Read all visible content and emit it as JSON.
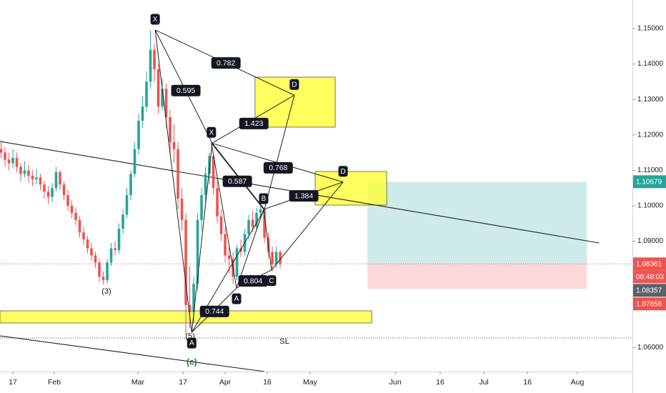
{
  "chart_data": {
    "type": "candlestick",
    "up_color": "#26a69a",
    "down_color": "#ef5350",
    "x": [
      -3,
      -2,
      -1,
      0,
      1,
      2,
      3,
      4,
      5,
      6,
      7,
      8,
      9,
      10,
      11,
      12,
      13,
      14,
      15,
      16,
      17,
      18,
      19,
      20,
      21,
      22,
      23,
      24,
      25,
      26,
      27,
      28,
      29,
      30,
      31,
      32,
      33,
      34,
      35,
      36,
      37,
      38,
      39,
      40,
      41,
      42,
      43,
      44,
      45,
      46,
      47,
      48,
      49,
      50,
      51,
      52,
      53,
      54,
      55,
      56,
      57,
      58,
      59,
      60,
      61,
      62,
      63,
      64,
      65,
      66,
      67,
      68
    ],
    "open": [
      1.116,
      1.115,
      1.113,
      1.112,
      1.1135,
      1.111,
      1.109,
      1.11,
      1.1085,
      1.1075,
      1.108,
      1.106,
      1.104,
      1.1025,
      1.105,
      1.1095,
      1.106,
      1.103,
      1.1,
      1.098,
      1.096,
      1.0925,
      1.0905,
      1.088,
      1.086,
      1.084,
      1.08,
      1.079,
      1.084,
      1.088,
      1.0875,
      1.0935,
      1.0975,
      1.103,
      1.109,
      1.116,
      1.124,
      1.128,
      1.135,
      1.144,
      1.1385,
      1.128,
      1.133,
      1.125,
      1.118,
      1.116,
      1.102,
      1.096,
      1.072,
      1.07,
      1.078,
      1.096,
      1.103,
      1.109,
      1.114,
      1.105,
      1.097,
      1.092,
      1.086,
      1.085,
      1.08,
      1.088,
      1.087,
      1.092,
      1.096,
      1.094,
      1.098,
      1.099,
      1.091,
      1.087,
      1.0835,
      1.087
    ],
    "high": [
      1.1185,
      1.1165,
      1.115,
      1.116,
      1.115,
      1.112,
      1.1125,
      1.1115,
      1.11,
      1.1105,
      1.109,
      1.107,
      1.1055,
      1.1065,
      1.111,
      1.11,
      1.107,
      1.1045,
      1.1015,
      1.0995,
      1.097,
      1.094,
      1.0915,
      1.0895,
      1.087,
      1.085,
      1.0815,
      1.085,
      1.0895,
      1.09,
      1.095,
      1.099,
      1.105,
      1.11,
      1.118,
      1.126,
      1.131,
      1.138,
      1.1495,
      1.1455,
      1.14,
      1.136,
      1.1345,
      1.127,
      1.123,
      1.118,
      1.105,
      1.098,
      1.083,
      1.08,
      1.098,
      1.105,
      1.111,
      1.115,
      1.1145,
      1.107,
      1.099,
      1.094,
      1.0885,
      1.087,
      1.089,
      1.0905,
      1.0935,
      1.0975,
      1.0985,
      1.0995,
      1.101,
      1.0995,
      1.0925,
      1.0885,
      1.0885,
      1.0875
    ],
    "low": [
      1.1135,
      1.111,
      1.11,
      1.1105,
      1.1095,
      1.107,
      1.108,
      1.1065,
      1.1055,
      1.106,
      1.1045,
      1.102,
      1.1005,
      1.101,
      1.104,
      1.1045,
      1.1015,
      1.0985,
      1.0965,
      1.0945,
      1.091,
      1.089,
      1.0865,
      1.0845,
      1.0825,
      1.0785,
      1.0778,
      1.078,
      1.083,
      1.086,
      1.0865,
      1.092,
      1.0965,
      1.1015,
      1.108,
      1.1145,
      1.122,
      1.1265,
      1.133,
      1.135,
      1.126,
      1.127,
      1.122,
      1.115,
      1.112,
      1.099,
      1.093,
      1.0636,
      1.0655,
      1.067,
      1.076,
      1.093,
      1.101,
      1.106,
      1.103,
      1.095,
      1.09,
      1.084,
      1.081,
      1.078,
      1.079,
      1.0855,
      1.086,
      1.0905,
      1.0925,
      1.093,
      1.0965,
      1.0895,
      1.085,
      1.0815,
      1.0825,
      1.0825
    ],
    "close": [
      1.115,
      1.113,
      1.112,
      1.1135,
      1.111,
      1.109,
      1.11,
      1.1085,
      1.1075,
      1.108,
      1.106,
      1.104,
      1.1025,
      1.105,
      1.1095,
      1.106,
      1.103,
      1.1,
      1.098,
      1.096,
      1.0925,
      1.0905,
      1.088,
      1.086,
      1.084,
      1.08,
      1.079,
      1.084,
      1.088,
      1.0875,
      1.0935,
      1.0975,
      1.103,
      1.109,
      1.116,
      1.124,
      1.128,
      1.135,
      1.144,
      1.1385,
      1.128,
      1.133,
      1.125,
      1.118,
      1.116,
      1.102,
      1.096,
      1.072,
      1.07,
      1.078,
      1.096,
      1.103,
      1.109,
      1.114,
      1.105,
      1.097,
      1.092,
      1.086,
      1.085,
      1.08,
      1.088,
      1.087,
      1.092,
      1.096,
      1.094,
      1.098,
      1.099,
      1.091,
      1.087,
      1.0835,
      1.087,
      1.0836
    ],
    "xlim": [
      -3.27,
      157.6
    ],
    "xticks": [
      {
        "value": 0,
        "label": "17"
      },
      {
        "value": 10.55,
        "label": "Feb"
      },
      {
        "value": 31.8,
        "label": "Mar"
      },
      {
        "value": 43.3,
        "label": "17"
      },
      {
        "value": 54,
        "label": "Apr"
      },
      {
        "value": 64.7,
        "label": "16"
      },
      {
        "value": 75.6,
        "label": "May"
      },
      {
        "value": 97.3,
        "label": "Jun"
      },
      {
        "value": 108.7,
        "label": "16"
      },
      {
        "value": 119.8,
        "label": "Jul"
      },
      {
        "value": 130.9,
        "label": "16"
      },
      {
        "value": 143.6,
        "label": "Aug"
      }
    ],
    "ylim": [
      1.05323,
      1.15806
    ],
    "yticks": [
      {
        "value": 1.06,
        "label": "1.06000"
      },
      {
        "value": 1.09,
        "label": "1.09000"
      },
      {
        "value": 1.1,
        "label": "1.10000"
      },
      {
        "value": 1.11,
        "label": "1.11000"
      },
      {
        "value": 1.12,
        "label": "1.12000"
      },
      {
        "value": 1.13,
        "label": "1.13000"
      },
      {
        "value": 1.14,
        "label": "1.14000"
      },
      {
        "value": 1.15,
        "label": "1.15000"
      }
    ],
    "position": {
      "x": [
        90.2,
        146
      ],
      "entry": 1.08361,
      "take_profit": 1.10679,
      "stop": 1.07656
    },
    "price_labels": [
      {
        "value": 1.10679,
        "label": "1.10679",
        "color": "#26a69a"
      },
      {
        "value": 1.08361,
        "label": "1.08361",
        "color": "#ef5350"
      },
      {
        "value": 1.08357,
        "label": "1.08357",
        "color": "#5d606b"
      },
      {
        "value": 1.07656,
        "label": "1.07656",
        "color": "#ef5350"
      }
    ],
    "countdown": "08:48:03",
    "zones": [
      {
        "x": [
          61.6,
          82
        ],
        "price": [
          1.13629,
          1.12218
        ]
      },
      {
        "x": [
          76.9,
          95.1
        ],
        "price": [
          1.10968,
          1.1002
        ]
      },
      {
        "x": [
          -3.27,
          91.3
        ],
        "price": [
          1.07036,
          1.06694
        ]
      }
    ],
    "trendlines": [
      {
        "x": [
          -3.27,
          149.1
        ],
        "price": [
          1.11815,
          1.08952
        ]
      },
      {
        "x": [
          -3.27,
          64
        ],
        "price": [
          1.0633,
          1.05323
        ]
      }
    ],
    "hlines": [
      {
        "price": 1.0627
      }
    ],
    "patterns": [
      {
        "points": [
          {
            "x": 36.2,
            "price": 1.1496,
            "label": "X"
          },
          {
            "x": 45.5,
            "price": 1.0643,
            "label": "A"
          },
          {
            "x": 50.7,
            "price": 1.1177,
            "label": null
          },
          {
            "x": 64,
            "price": 1.099,
            "label": null
          },
          {
            "x": 71.6,
            "price": 1.1312,
            "label": "D"
          }
        ],
        "ratios": [
          {
            "label": "0.595",
            "x": 44,
            "price": 1.1325
          },
          {
            "label": "0.782",
            "x": 54.2,
            "price": 1.1403
          },
          {
            "label": "1.423",
            "x": 61.3,
            "price": 1.1232
          },
          {
            "label": "0.768",
            "x": 67.5,
            "price": 1.1107
          }
        ]
      },
      {
        "points": [
          {
            "x": 50.5,
            "price": 1.1177,
            "label": "X"
          },
          {
            "x": 56.9,
            "price": 1.0768,
            "label": "A"
          },
          {
            "x": 63.8,
            "price": 1.099,
            "label": "B"
          },
          {
            "x": 65.8,
            "price": 1.0819,
            "label": "C"
          },
          {
            "x": 84,
            "price": 1.1067,
            "label": "D"
          }
        ],
        "ratios": [
          {
            "label": "0.587",
            "x": 57.1,
            "price": 1.1069
          },
          {
            "label": "0.804",
            "x": 61.1,
            "price": 1.0788
          },
          {
            "label": "1.384",
            "x": 74,
            "price": 1.1028
          },
          {
            "label": "0.744",
            "x": 51.3,
            "price": 1.0702
          }
        ]
      }
    ],
    "segments": [
      {
        "x": [
          45.5,
          56.9
        ],
        "price": [
          1.0643,
          1.0768
        ]
      }
    ],
    "wave_labels": [
      {
        "label": "(3)",
        "x": 23.8,
        "price": 1.0758,
        "color": "#131722"
      },
      {
        "label": "(5)",
        "x": 45.1,
        "price": 1.0631,
        "color": "#131722"
      },
      {
        "label": "(c)",
        "x": 45.5,
        "price": 1.0558,
        "color": "#1b7d1b"
      },
      {
        "label": "SL",
        "x": 69.1,
        "price": 1.0617,
        "color": "#131722"
      }
    ]
  }
}
